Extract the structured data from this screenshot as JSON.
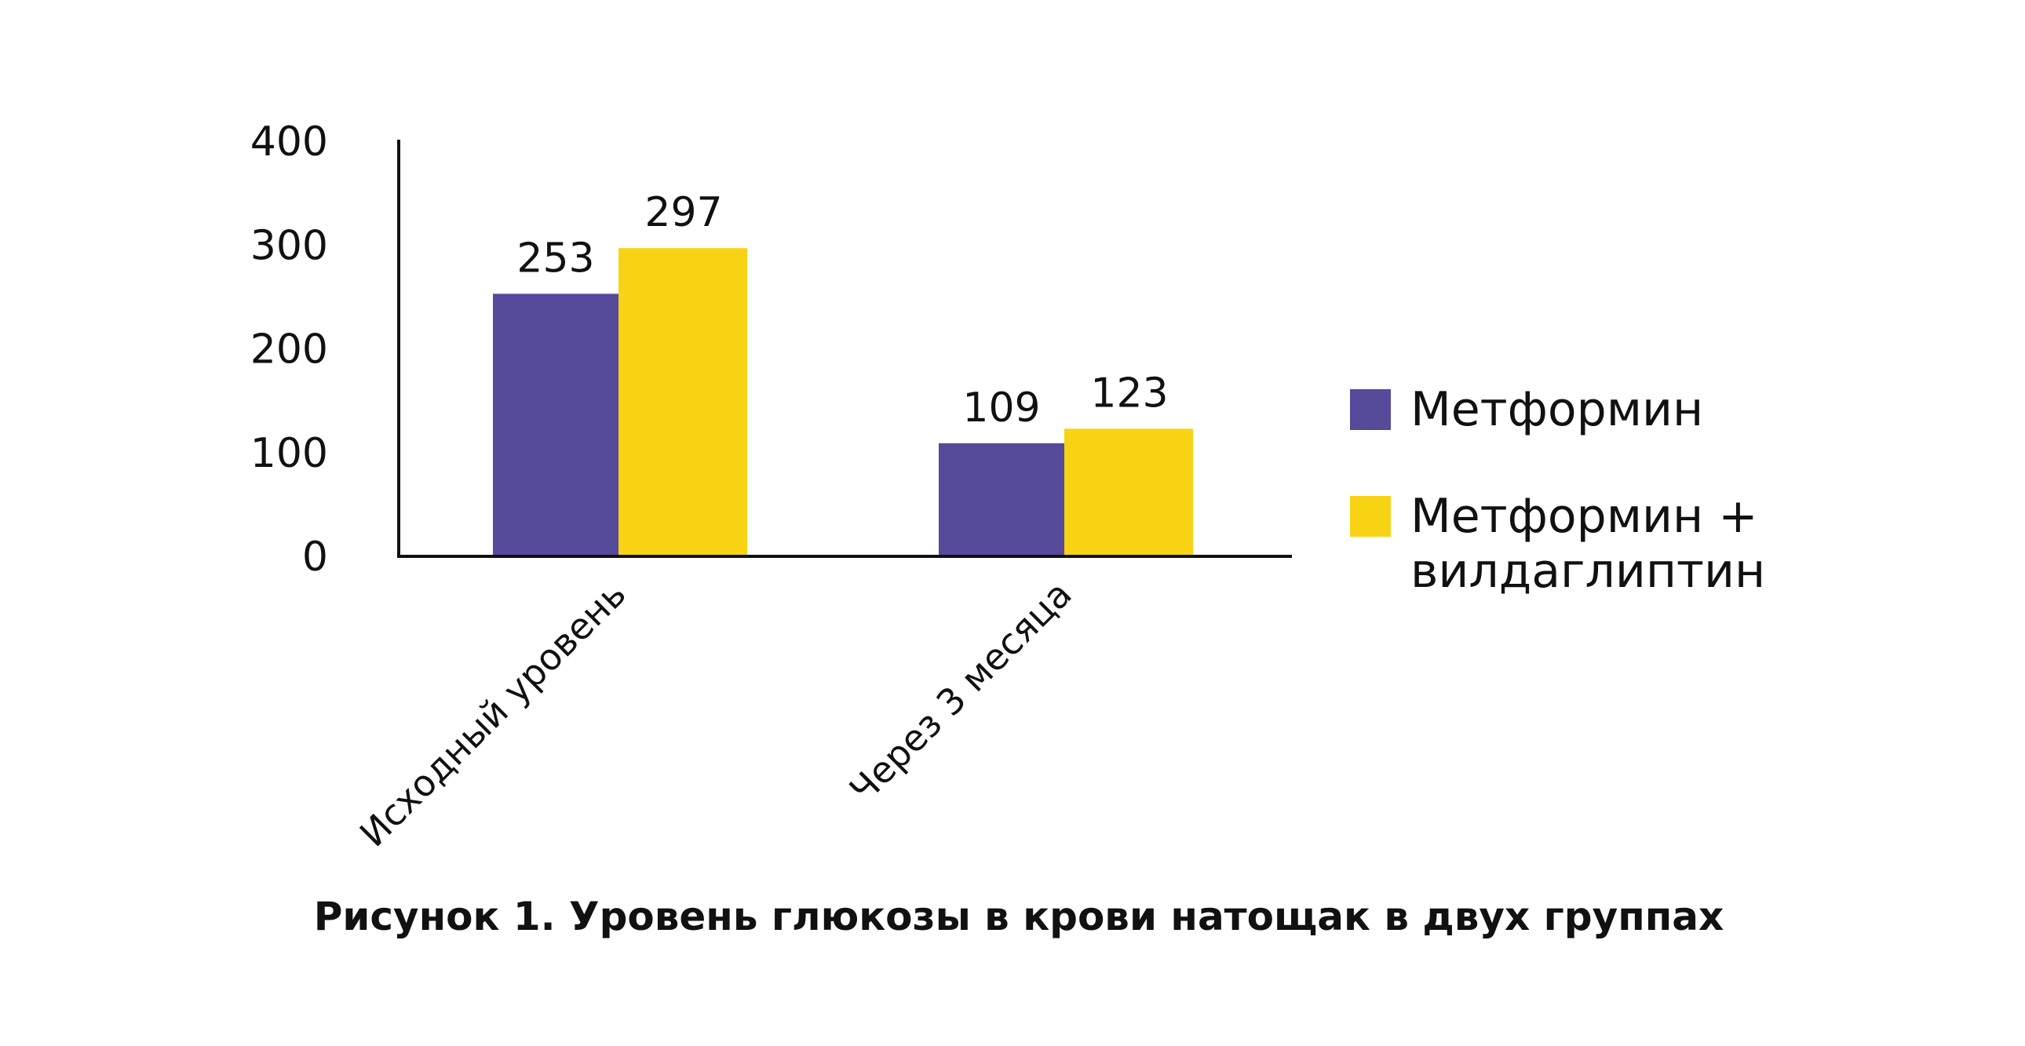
{
  "chart_data": {
    "type": "bar",
    "title": "Рисунок 1. Уровень глюкозы в крови натощак в двух группах",
    "xlabel": "",
    "ylabel": "",
    "ylim": [
      0,
      400
    ],
    "yticks": [
      0,
      100,
      200,
      300,
      400
    ],
    "categories": [
      "Исходный уровень",
      "Через 3 месяца"
    ],
    "series": [
      {
        "name": "Метформин",
        "legend_lines": [
          "Метформин"
        ],
        "color": "#564A9A",
        "values": [
          253,
          109
        ]
      },
      {
        "name": "Метформин + вилдаглиптин",
        "legend_lines": [
          "Метформин +",
          "вилдаглиптин"
        ],
        "color": "#F8D313",
        "values": [
          297,
          123
        ]
      }
    ],
    "legend": "right",
    "grid": false
  }
}
